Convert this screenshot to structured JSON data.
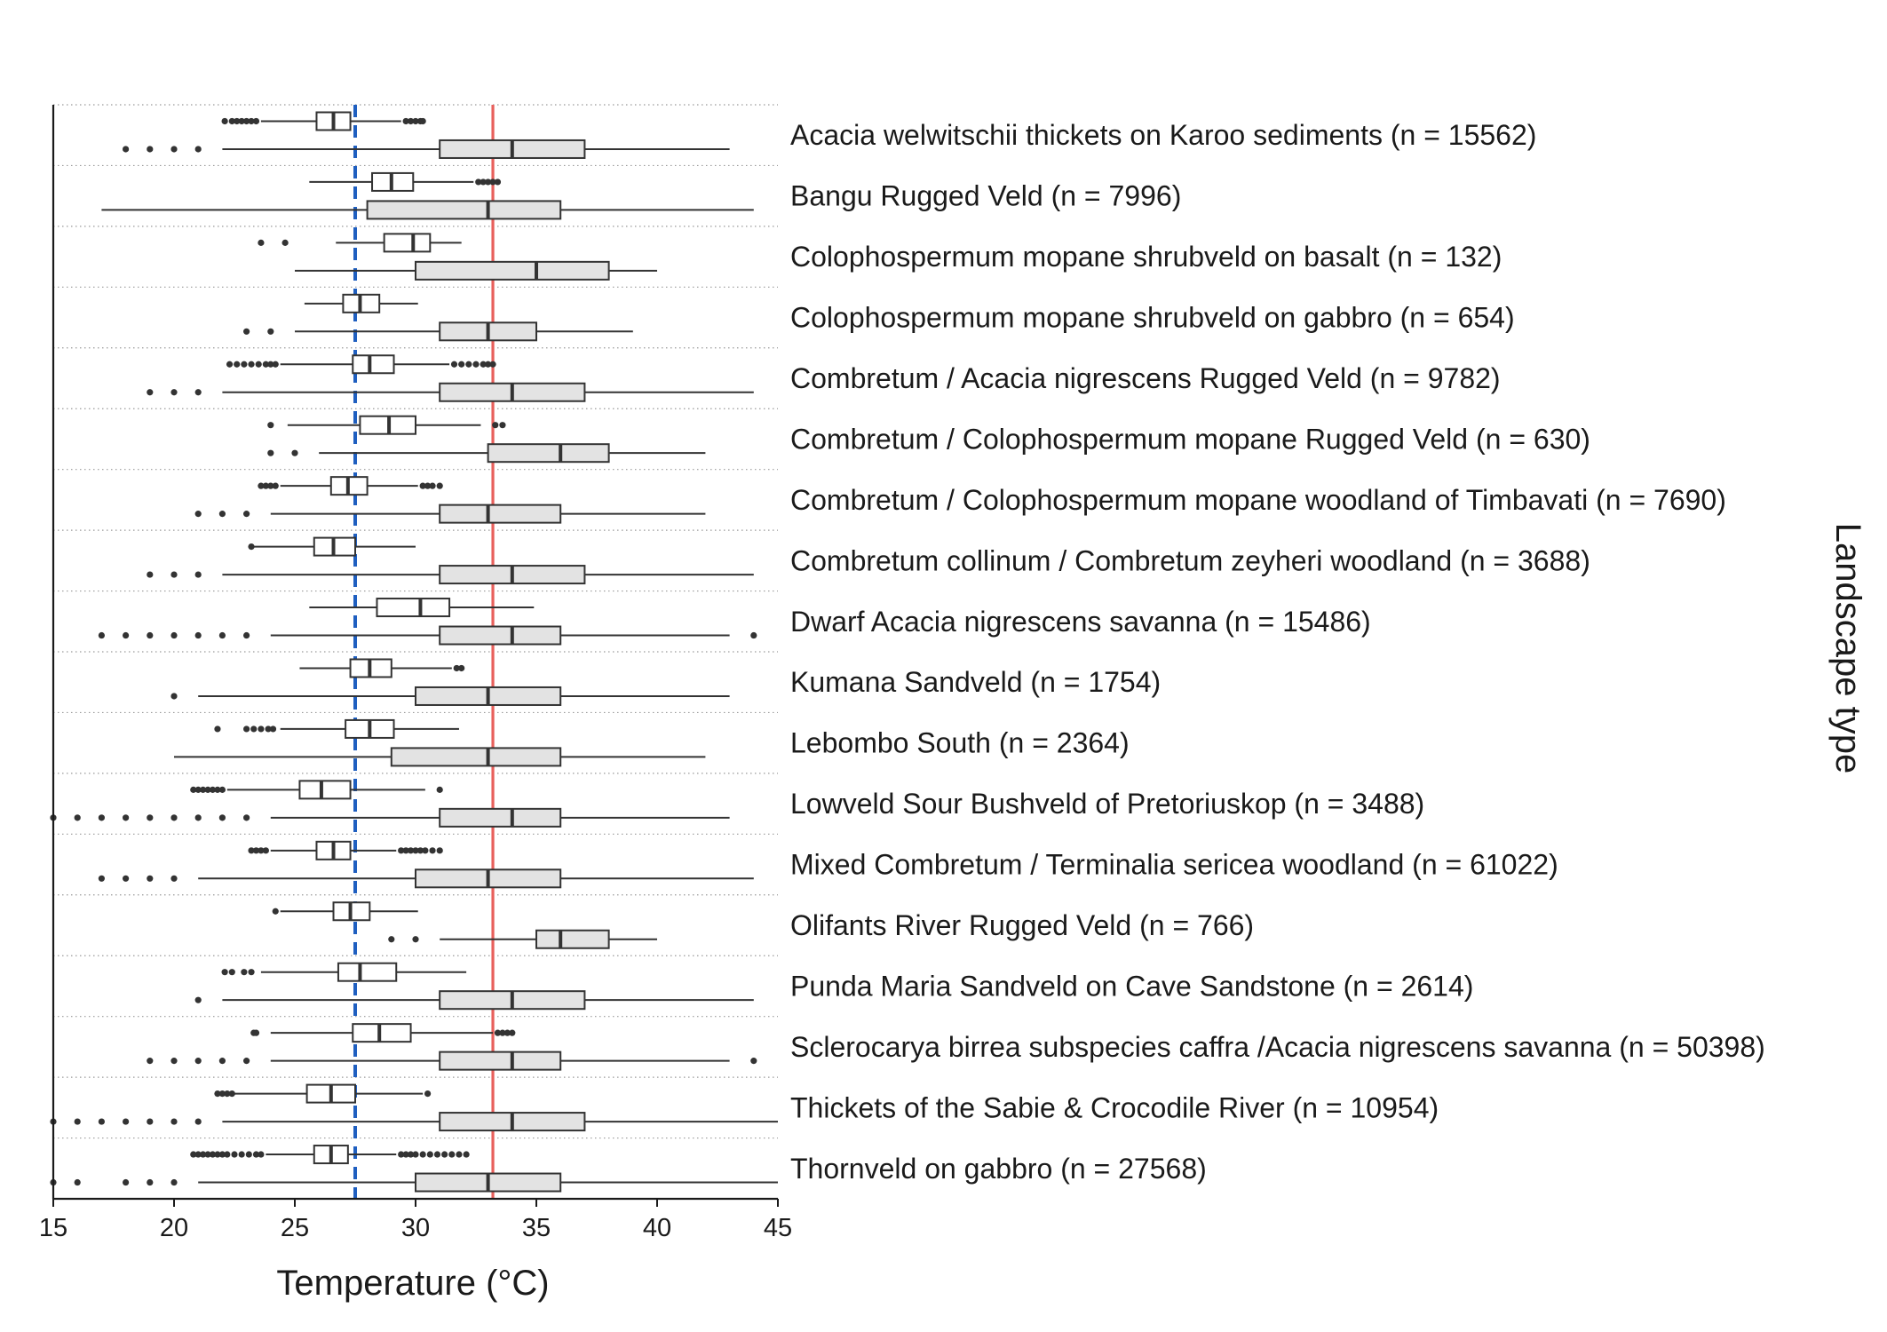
{
  "chart_data": {
    "type": "boxplot",
    "orientation": "horizontal",
    "xlabel": "Temperature (°C)",
    "ylabel": "Landscape type",
    "xlim": [
      15,
      45
    ],
    "xticks": [
      15,
      20,
      25,
      30,
      35,
      40,
      45
    ],
    "reference_lines": [
      {
        "value": 27.5,
        "style": "dashed",
        "color": "#1f5fc0"
      },
      {
        "value": 33.2,
        "style": "solid",
        "color": "#e8605c"
      }
    ],
    "series_styles": [
      {
        "fill": "#ffffff",
        "stroke": "#333333"
      },
      {
        "fill": "#e3e3e3",
        "stroke": "#333333"
      }
    ],
    "groups": [
      {
        "label": "Acacia welwitschii thickets on Karoo sediments (n = 15562)",
        "boxes": [
          {
            "whislo": 23.6,
            "q1": 25.9,
            "med": 26.6,
            "q3": 27.3,
            "whishi": 29.4,
            "fliers": [
              22.1,
              22.4,
              22.6,
              22.8,
              23.0,
              23.2,
              23.4,
              29.6,
              29.8,
              30.0,
              30.2,
              30.3
            ]
          },
          {
            "whislo": 22,
            "q1": 31,
            "med": 34,
            "q3": 37,
            "whishi": 43,
            "fliers": [
              18,
              19,
              20,
              21
            ]
          }
        ]
      },
      {
        "label": "Bangu Rugged Veld (n = 7996)",
        "boxes": [
          {
            "whislo": 25.6,
            "q1": 28.2,
            "med": 29.0,
            "q3": 29.9,
            "whishi": 32.4,
            "fliers": [
              32.6,
              32.8,
              33.0,
              33.2,
              33.4
            ]
          },
          {
            "whislo": 17,
            "q1": 28,
            "med": 33,
            "q3": 36,
            "whishi": 44,
            "fliers": []
          }
        ]
      },
      {
        "label": "Colophospermum mopane shrubveld on basalt (n = 132)",
        "boxes": [
          {
            "whislo": 26.7,
            "q1": 28.7,
            "med": 29.9,
            "q3": 30.6,
            "whishi": 31.9,
            "fliers": [
              23.6,
              24.6
            ]
          },
          {
            "whislo": 25,
            "q1": 30,
            "med": 35,
            "q3": 38,
            "whishi": 40,
            "fliers": []
          }
        ]
      },
      {
        "label": "Colophospermum mopane shrubveld on gabbro (n = 654)",
        "boxes": [
          {
            "whislo": 25.4,
            "q1": 27.0,
            "med": 27.7,
            "q3": 28.5,
            "whishi": 30.1,
            "fliers": []
          },
          {
            "whislo": 25,
            "q1": 31,
            "med": 33,
            "q3": 35,
            "whishi": 39,
            "fliers": [
              23,
              24
            ]
          }
        ]
      },
      {
        "label": "Combretum / Acacia nigrescens Rugged Veld (n = 9782)",
        "boxes": [
          {
            "whislo": 24.4,
            "q1": 27.4,
            "med": 28.1,
            "q3": 29.1,
            "whishi": 31.4,
            "fliers": [
              22.3,
              22.6,
              22.9,
              23.2,
              23.5,
              23.8,
              24.0,
              24.2,
              31.6,
              31.9,
              32.2,
              32.5,
              32.8,
              33.0,
              33.2
            ]
          },
          {
            "whislo": 22,
            "q1": 31,
            "med": 34,
            "q3": 37,
            "whishi": 44,
            "fliers": [
              19,
              20,
              21
            ]
          }
        ]
      },
      {
        "label": "Combretum / Colophospermum mopane Rugged Veld (n = 630)",
        "boxes": [
          {
            "whislo": 24.7,
            "q1": 27.7,
            "med": 28.9,
            "q3": 30.0,
            "whishi": 32.7,
            "fliers": [
              24.0,
              33.3,
              33.6
            ]
          },
          {
            "whislo": 26,
            "q1": 33,
            "med": 36,
            "q3": 38,
            "whishi": 42,
            "fliers": [
              24,
              25
            ]
          }
        ]
      },
      {
        "label": "Combretum / Colophospermum mopane woodland of Timbavati (n = 7690)",
        "boxes": [
          {
            "whislo": 24.4,
            "q1": 26.5,
            "med": 27.2,
            "q3": 28.0,
            "whishi": 30.1,
            "fliers": [
              23.6,
              23.8,
              24.0,
              24.2,
              30.3,
              30.5,
              30.7,
              31.0
            ]
          },
          {
            "whislo": 24,
            "q1": 31,
            "med": 33,
            "q3": 36,
            "whishi": 42,
            "fliers": [
              21,
              22,
              23
            ]
          }
        ]
      },
      {
        "label": "Combretum collinum / Combretum zeyheri woodland (n = 3688)",
        "boxes": [
          {
            "whislo": 23.2,
            "q1": 25.8,
            "med": 26.6,
            "q3": 27.5,
            "whishi": 30.0,
            "fliers": [
              23.2
            ]
          },
          {
            "whislo": 22,
            "q1": 31,
            "med": 34,
            "q3": 37,
            "whishi": 44,
            "fliers": [
              19,
              20,
              21
            ]
          }
        ]
      },
      {
        "label": "Dwarf Acacia nigrescens savanna (n = 15486)",
        "boxes": [
          {
            "whislo": 25.6,
            "q1": 28.4,
            "med": 30.2,
            "q3": 31.4,
            "whishi": 34.9,
            "fliers": []
          },
          {
            "whislo": 24,
            "q1": 31,
            "med": 34,
            "q3": 36,
            "whishi": 43,
            "fliers": [
              17,
              18,
              19,
              20,
              21,
              22,
              23,
              44
            ]
          }
        ]
      },
      {
        "label": "Kumana Sandveld (n = 1754)",
        "boxes": [
          {
            "whislo": 25.2,
            "q1": 27.3,
            "med": 28.1,
            "q3": 29.0,
            "whishi": 31.5,
            "fliers": [
              31.7,
              31.9
            ]
          },
          {
            "whislo": 21,
            "q1": 30,
            "med": 33,
            "q3": 36,
            "whishi": 43,
            "fliers": [
              20
            ]
          }
        ]
      },
      {
        "label": "Lebombo South (n = 2364)",
        "boxes": [
          {
            "whislo": 24.4,
            "q1": 27.1,
            "med": 28.1,
            "q3": 29.1,
            "whishi": 31.8,
            "fliers": [
              21.8,
              23.0,
              23.3,
              23.6,
              23.9,
              24.1
            ]
          },
          {
            "whislo": 20,
            "q1": 29,
            "med": 33,
            "q3": 36,
            "whishi": 42,
            "fliers": []
          }
        ]
      },
      {
        "label": "Lowveld Sour Bushveld of Pretoriuskop (n = 3488)",
        "boxes": [
          {
            "whislo": 22.2,
            "q1": 25.2,
            "med": 26.1,
            "q3": 27.3,
            "whishi": 30.4,
            "fliers": [
              20.8,
              21.0,
              21.2,
              21.4,
              21.6,
              21.8,
              22.0,
              31.0
            ]
          },
          {
            "whislo": 24,
            "q1": 31,
            "med": 34,
            "q3": 36,
            "whishi": 43,
            "fliers": [
              15,
              16,
              17,
              18,
              19,
              20,
              21,
              22,
              23
            ]
          }
        ]
      },
      {
        "label": "Mixed Combretum / Terminalia sericea woodland (n = 61022)",
        "boxes": [
          {
            "whislo": 24.0,
            "q1": 25.9,
            "med": 26.6,
            "q3": 27.3,
            "whishi": 29.2,
            "fliers": [
              23.2,
              23.4,
              23.6,
              23.8,
              29.4,
              29.6,
              29.8,
              30.0,
              30.2,
              30.4,
              30.7,
              31.0
            ]
          },
          {
            "whislo": 21,
            "q1": 30,
            "med": 33,
            "q3": 36,
            "whishi": 44,
            "fliers": [
              17,
              18,
              19,
              20
            ]
          }
        ]
      },
      {
        "label": "Olifants River Rugged Veld (n = 766)",
        "boxes": [
          {
            "whislo": 24.4,
            "q1": 26.6,
            "med": 27.3,
            "q3": 28.1,
            "whishi": 30.1,
            "fliers": [
              24.2
            ]
          },
          {
            "whislo": 31,
            "q1": 35,
            "med": 36,
            "q3": 38,
            "whishi": 40,
            "fliers": [
              29,
              30
            ]
          }
        ]
      },
      {
        "label": "Punda Maria Sandveld on Cave Sandstone (n = 2614)",
        "boxes": [
          {
            "whislo": 23.6,
            "q1": 26.8,
            "med": 27.7,
            "q3": 29.2,
            "whishi": 32.1,
            "fliers": [
              22.1,
              22.4,
              22.9,
              23.2
            ]
          },
          {
            "whislo": 22,
            "q1": 31,
            "med": 34,
            "q3": 37,
            "whishi": 44,
            "fliers": [
              21
            ]
          }
        ]
      },
      {
        "label": "Sclerocarya birrea subspecies caffra /Acacia nigrescens savanna (n = 50398)",
        "boxes": [
          {
            "whislo": 24.0,
            "q1": 27.4,
            "med": 28.5,
            "q3": 29.8,
            "whishi": 33.2,
            "fliers": [
              23.3,
              23.4,
              33.4,
              33.6,
              33.8,
              34.0
            ]
          },
          {
            "whislo": 24,
            "q1": 31,
            "med": 34,
            "q3": 36,
            "whishi": 43,
            "fliers": [
              19,
              20,
              21,
              22,
              23,
              44
            ]
          }
        ]
      },
      {
        "label": "Thickets of the Sabie & Crocodile River (n = 10954)",
        "boxes": [
          {
            "whislo": 22.5,
            "q1": 25.5,
            "med": 26.5,
            "q3": 27.5,
            "whishi": 30.3,
            "fliers": [
              21.8,
              22.0,
              22.2,
              22.4,
              30.5
            ]
          },
          {
            "whislo": 22,
            "q1": 31,
            "med": 34,
            "q3": 37,
            "whishi": 45,
            "fliers": [
              15,
              16,
              17,
              18,
              19,
              20,
              21
            ]
          }
        ]
      },
      {
        "label": "Thornveld on gabbro (n = 27568)",
        "boxes": [
          {
            "whislo": 23.8,
            "q1": 25.8,
            "med": 26.5,
            "q3": 27.2,
            "whishi": 29.2,
            "fliers": [
              20.8,
              21.0,
              21.2,
              21.4,
              21.6,
              21.8,
              22.0,
              22.2,
              22.5,
              22.8,
              23.1,
              23.4,
              23.6,
              29.4,
              29.6,
              29.8,
              30.0,
              30.3,
              30.6,
              30.9,
              31.2,
              31.5,
              31.8,
              32.1
            ]
          },
          {
            "whislo": 21,
            "q1": 30,
            "med": 33,
            "q3": 36,
            "whishi": 45,
            "fliers": [
              15,
              16,
              18,
              19,
              20
            ]
          }
        ]
      }
    ]
  }
}
